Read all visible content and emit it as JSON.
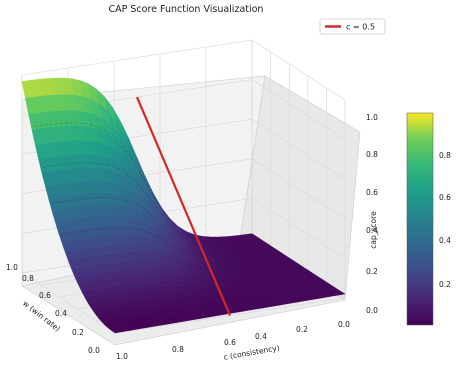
{
  "chart_data": {
    "type": "surface3d",
    "title": "CAP Score Function Visualization",
    "xlabel": "c (consistency)",
    "ylabel": "w (win rate)",
    "zlabel": "cap_score",
    "xlim": [
      0.0,
      1.0
    ],
    "ylim": [
      0.0,
      1.0
    ],
    "zlim": [
      0.0,
      1.0
    ],
    "x_ticks": [
      "1.0",
      "0.8",
      "0.6",
      "0.4",
      "0.2",
      "0.0"
    ],
    "y_ticks": [
      "0.0",
      "0.2",
      "0.4",
      "0.6",
      "0.8",
      "1.0"
    ],
    "z_ticks": [
      "0.0",
      "0.2",
      "0.4",
      "0.6",
      "0.8",
      "1.0"
    ],
    "colorbar_ticks": [
      "0.2",
      "0.4",
      "0.6",
      "0.8"
    ],
    "colormap": "viridis",
    "legend": {
      "label": "c = 0.5",
      "color": "#d62728",
      "placement": "top-right"
    },
    "surface_corners": [
      {
        "c": 1.0,
        "w": 1.0,
        "cap_score": 0.97
      },
      {
        "c": 1.0,
        "w": 0.0,
        "cap_score": 0.02
      },
      {
        "c": 0.0,
        "w": 1.0,
        "cap_score": 0.02
      },
      {
        "c": 0.0,
        "w": 0.0,
        "cap_score": 0.0
      }
    ],
    "highlight_line": {
      "c": 0.5,
      "w_range": [
        0.0,
        1.0
      ],
      "cap_score_range": [
        0.0,
        0.8
      ]
    },
    "grid": true
  }
}
